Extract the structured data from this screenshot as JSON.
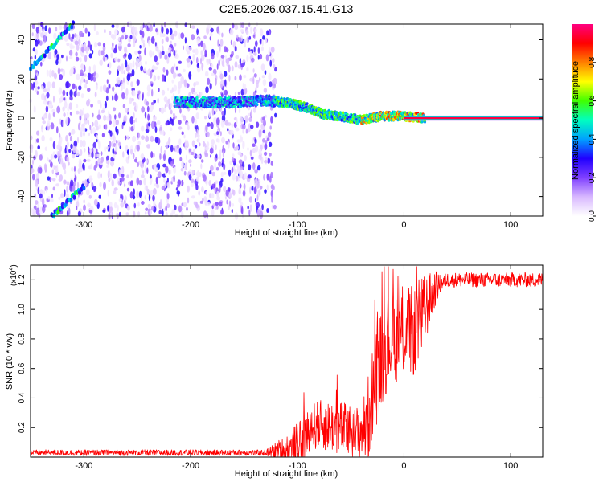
{
  "title": "C2E5.2026.037.15.41.G13",
  "chart_data": [
    {
      "type": "heatmap",
      "xlabel": "Height of straight line (km)",
      "ylabel": "Frequency (Hz)",
      "xlim": [
        -350,
        130
      ],
      "ylim": [
        -50,
        48
      ],
      "xticks": [
        -300,
        -200,
        -100,
        0,
        100
      ],
      "yticks": [
        -40,
        -20,
        0,
        20,
        40
      ],
      "colorbar": {
        "label": "Normalized spectral amplitude",
        "range": [
          0,
          1
        ],
        "ticks": [
          0.0,
          0.2,
          0.4,
          0.6,
          0.8
        ],
        "tick_labels": [
          "0.0",
          "0.2",
          "0.4",
          "0.6",
          "0.8"
        ],
        "colormap": [
          "#ffffff",
          "#d8b8ff",
          "#8040ff",
          "#2000ff",
          "#00a0ff",
          "#00ffc0",
          "#40ff00",
          "#ffff00",
          "#ff8000",
          "#ff0000",
          "#ff0080"
        ]
      },
      "noise_region_x": [
        -350,
        -120
      ],
      "ridge": [
        {
          "x": -215,
          "y": 8
        },
        {
          "x": -190,
          "y": 8
        },
        {
          "x": -160,
          "y": 8
        },
        {
          "x": -130,
          "y": 9
        },
        {
          "x": -110,
          "y": 8
        },
        {
          "x": -95,
          "y": 6
        },
        {
          "x": -85,
          "y": 4
        },
        {
          "x": -75,
          "y": 2
        },
        {
          "x": -60,
          "y": 1
        },
        {
          "x": -50,
          "y": 0
        },
        {
          "x": -40,
          "y": -1
        },
        {
          "x": -30,
          "y": 0
        },
        {
          "x": -20,
          "y": 1
        },
        {
          "x": -10,
          "y": 1
        },
        {
          "x": 0,
          "y": 1
        },
        {
          "x": 20,
          "y": 0
        },
        {
          "x": 130,
          "y": 0
        }
      ],
      "diagonal_streaks": [
        {
          "from": [
            -350,
            25
          ],
          "to": [
            -310,
            48
          ]
        },
        {
          "from": [
            -330,
            -50
          ],
          "to": [
            -300,
            -35
          ]
        }
      ],
      "tone_line": {
        "x_start": 0,
        "x_end": 130,
        "y": 0
      }
    },
    {
      "type": "line",
      "xlabel": "Height of straight line (km)",
      "ylabel": "SNR (10 * v/v)",
      "y_scale_label": "(x10",
      "y_scale_exp": "4",
      "y_scale_close": ")",
      "xlim": [
        -350,
        130
      ],
      "ylim": [
        0,
        1.3
      ],
      "xticks": [
        -300,
        -200,
        -100,
        0,
        100
      ],
      "yticks": [
        0.2,
        0.4,
        0.6,
        0.8,
        1.0,
        1.2
      ],
      "ytick_labels": [
        "0.2",
        "0.4",
        "0.6",
        "0.8",
        "1.0",
        "1.2"
      ],
      "series": [
        {
          "color": "#ff0000",
          "envelope": [
            {
              "x": -350,
              "y": 0.03
            },
            {
              "x": -130,
              "y": 0.03
            },
            {
              "x": -110,
              "y": 0.05
            },
            {
              "x": -95,
              "y": 0.1
            },
            {
              "x": -88,
              "y": 0.2
            },
            {
              "x": -80,
              "y": 0.22
            },
            {
              "x": -60,
              "y": 0.2
            },
            {
              "x": -45,
              "y": 0.15
            },
            {
              "x": -35,
              "y": 0.2
            },
            {
              "x": -28,
              "y": 0.5
            },
            {
              "x": -22,
              "y": 0.65
            },
            {
              "x": -15,
              "y": 0.8
            },
            {
              "x": 0,
              "y": 0.85
            },
            {
              "x": 10,
              "y": 0.85
            },
            {
              "x": 20,
              "y": 1.0
            },
            {
              "x": 30,
              "y": 1.15
            },
            {
              "x": 40,
              "y": 1.2
            },
            {
              "x": 130,
              "y": 1.2
            }
          ],
          "noise_amplitude": [
            {
              "x": -350,
              "y": 0.02
            },
            {
              "x": -130,
              "y": 0.02
            },
            {
              "x": -100,
              "y": 0.15
            },
            {
              "x": -40,
              "y": 0.2
            },
            {
              "x": -30,
              "y": 0.35
            },
            {
              "x": 15,
              "y": 0.3
            },
            {
              "x": 35,
              "y": 0.05
            },
            {
              "x": 130,
              "y": 0.05
            }
          ]
        }
      ]
    }
  ]
}
